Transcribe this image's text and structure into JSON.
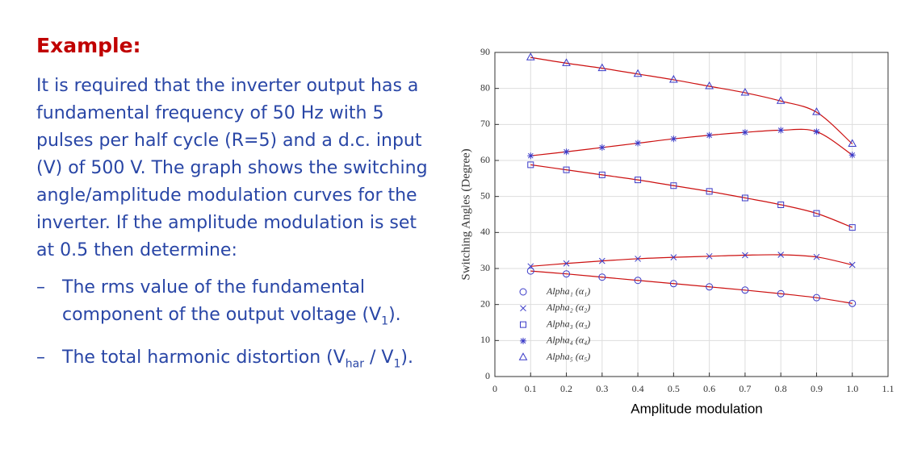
{
  "slide": {
    "heading": "Example:",
    "paragraph": "It is required that the inverter output has a fundamental frequency of 50 Hz with 5 pulses per half cycle (R=5) and a d.c. input (V) of 500 V.  The graph shows the switching angle/amplitude modulation curves for the inverter.  If the amplitude modulation is set at 0.5 then determine:",
    "bullets": [
      {
        "marker": "–",
        "parts": [
          "The rms value of the fundamental component of the output voltage (V",
          "1",
          ")."
        ]
      },
      {
        "marker": "–",
        "parts": [
          "The total harmonic distortion (V",
          "har",
          " / V",
          "1",
          ")."
        ]
      }
    ]
  },
  "chart_data": {
    "type": "line",
    "xlabel": "Amplitude modulation",
    "ylabel": "Switching Angles (Degree)",
    "x": [
      0.1,
      0.2,
      0.3,
      0.4,
      0.5,
      0.6,
      0.7,
      0.8,
      0.9,
      1.0
    ],
    "series": [
      {
        "name": "Alpha₁ (α₁)",
        "marker": "circle",
        "color": "#3a3ac8",
        "line_color": "#cc1010",
        "values": [
          29.3,
          28.5,
          27.6,
          26.7,
          25.8,
          24.9,
          24.0,
          23.0,
          21.9,
          20.3
        ]
      },
      {
        "name": "Alpha₂ (α₂)",
        "marker": "x",
        "color": "#3a3ac8",
        "line_color": "#cc1010",
        "values": [
          30.6,
          31.4,
          32.1,
          32.7,
          33.1,
          33.4,
          33.7,
          33.8,
          33.2,
          31.0
        ]
      },
      {
        "name": "Alpha₃ (α₃)",
        "marker": "square",
        "color": "#3a3ac8",
        "line_color": "#cc1010",
        "values": [
          58.8,
          57.4,
          56.0,
          54.6,
          53.0,
          51.4,
          49.6,
          47.7,
          45.3,
          41.4
        ]
      },
      {
        "name": "Alpha₄ (α₄)",
        "marker": "star",
        "color": "#3a3ac8",
        "line_color": "#cc1010",
        "values": [
          61.3,
          62.4,
          63.6,
          64.8,
          66.0,
          67.0,
          67.8,
          68.4,
          68.0,
          61.5
        ]
      },
      {
        "name": "Alpha₅ (α₅)",
        "marker": "triangle",
        "color": "#3a3ac8",
        "line_color": "#cc1010",
        "values": [
          88.6,
          87.0,
          85.6,
          84.0,
          82.4,
          80.6,
          78.8,
          76.5,
          73.4,
          64.6
        ]
      }
    ],
    "xlim": [
      0,
      1.1
    ],
    "ylim": [
      0,
      90
    ],
    "xticks": [
      0,
      0.1,
      0.2,
      0.3,
      0.4,
      0.5,
      0.6,
      0.7,
      0.8,
      0.9,
      {
        "value": 1,
        "label": "1.0"
      },
      1.1
    ],
    "yticks": [
      0,
      10,
      20,
      30,
      40,
      50,
      60,
      70,
      80,
      90
    ],
    "grid": true,
    "legend": "lower left"
  }
}
